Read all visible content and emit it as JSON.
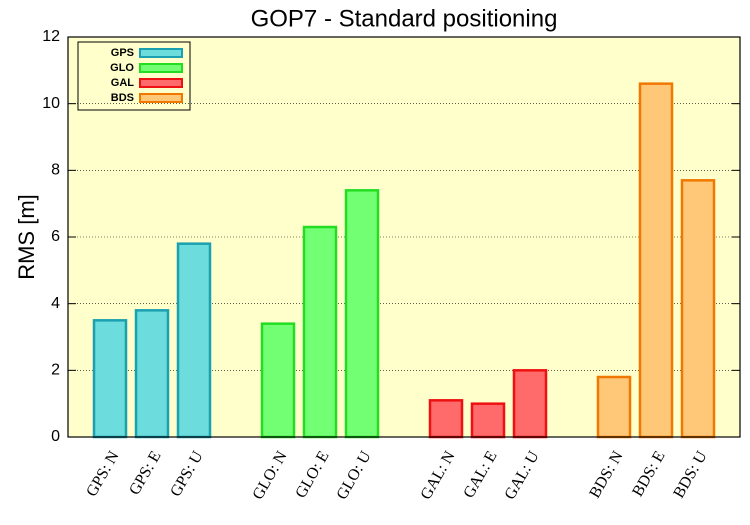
{
  "chart_data": {
    "type": "bar",
    "title": "GOP7 - Standard positioning",
    "y_label": "RMS [m]",
    "categories": [
      "GPS: N",
      "GPS: E",
      "GPS: U",
      null,
      "GLO: N",
      "GLO: E",
      "GLO: U",
      null,
      "GAL: N",
      "GAL: E",
      "GAL: U",
      null,
      "BDS: N",
      "BDS: E",
      "BDS: U"
    ],
    "series": [
      {
        "name": "GPS",
        "color": "#6cdcdc",
        "edgecolor": "#1aa0b0",
        "values": [
          3.5,
          3.8,
          5.8,
          null,
          null,
          null,
          null,
          null,
          null,
          null,
          null,
          null,
          null,
          null,
          null
        ]
      },
      {
        "name": "GLO",
        "color": "#73ff73",
        "edgecolor": "#22dd22",
        "values": [
          null,
          null,
          null,
          null,
          3.4,
          6.3,
          7.4,
          null,
          null,
          null,
          null,
          null,
          null,
          null,
          null
        ]
      },
      {
        "name": "GAL",
        "color": "#ff6b6b",
        "edgecolor": "#ee1111",
        "values": [
          null,
          null,
          null,
          null,
          null,
          null,
          null,
          null,
          1.1,
          1.0,
          2.0,
          null,
          null,
          null,
          null
        ]
      },
      {
        "name": "BDS",
        "color": "#ffc878",
        "edgecolor": "#f07800",
        "values": [
          null,
          null,
          null,
          null,
          null,
          null,
          null,
          null,
          null,
          null,
          null,
          null,
          1.8,
          10.6,
          7.7
        ]
      }
    ],
    "ylim": [
      0,
      12
    ],
    "yticks": [
      0,
      2,
      4,
      6,
      8,
      10,
      12
    ],
    "grid": true,
    "legend": "upper left"
  }
}
